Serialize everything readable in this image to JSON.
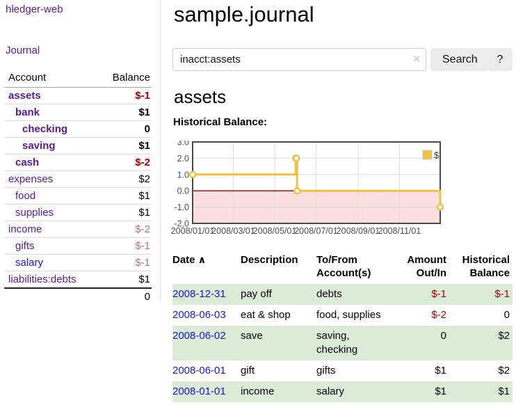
{
  "sidebar": {
    "brand": "hledger-web",
    "journal_label": "Journal",
    "accounts_table": {
      "headers": [
        "Account",
        "Balance"
      ],
      "rows": [
        {
          "name": "assets",
          "balance": "$-1",
          "indent": 1,
          "bold": true
        },
        {
          "name": "bank",
          "balance": "$1",
          "indent": 2,
          "bold": true
        },
        {
          "name": "checking",
          "balance": "0",
          "indent": 3,
          "bold": true
        },
        {
          "name": "saving",
          "balance": "$1",
          "indent": 3,
          "bold": true
        },
        {
          "name": "cash",
          "balance": "$-2",
          "indent": 2,
          "bold": true
        },
        {
          "name": "expenses",
          "balance": "$2",
          "indent": 1,
          "bold": false
        },
        {
          "name": "food",
          "balance": "$1",
          "indent": 2,
          "bold": false
        },
        {
          "name": "supplies",
          "balance": "$1",
          "indent": 2,
          "bold": false
        },
        {
          "name": "income",
          "balance": "$-2",
          "indent": 1,
          "bold": false
        },
        {
          "name": "gifts",
          "balance": "$-1",
          "indent": 2,
          "bold": false
        },
        {
          "name": "salary",
          "balance": "$-1",
          "indent": 2,
          "bold": false,
          "link_color": "blue"
        },
        {
          "name": "liabilities:debts",
          "balance": "$1",
          "indent": 1,
          "bold": false
        }
      ],
      "total": "0"
    }
  },
  "main": {
    "title": "sample.journal",
    "search": {
      "value": "inacct:assets",
      "clear_icon": "×",
      "button_label": "Search",
      "help_label": "?"
    },
    "account_heading": "assets",
    "balance_label": "Historical Balance:",
    "register_table": {
      "headers": {
        "date": "Date",
        "sort_icon": "∧",
        "description": "Description",
        "account": "To/From Account(s)",
        "amount": "Amount Out/In",
        "balance": "Historical Balance"
      },
      "rows": [
        {
          "date": "2008-12-31",
          "description": "pay off",
          "account": "debts",
          "amount": "$-1",
          "balance": "$-1"
        },
        {
          "date": "2008-06-03",
          "description": "eat & shop",
          "account": "food, supplies",
          "amount": "$-2",
          "balance": "0"
        },
        {
          "date": "2008-06-02",
          "description": "save",
          "account": "saving, checking",
          "amount": "0",
          "balance": "$2"
        },
        {
          "date": "2008-06-01",
          "description": "gift",
          "account": "gifts",
          "amount": "$1",
          "balance": "$2"
        },
        {
          "date": "2008-01-01",
          "description": "income",
          "account": "salary",
          "amount": "$1",
          "balance": "$1"
        }
      ]
    }
  },
  "chart_data": {
    "type": "line",
    "title": "Historical Balance",
    "series": [
      {
        "name": "$",
        "color": "#edc240",
        "step": true,
        "points": [
          [
            "2008-01-01",
            1
          ],
          [
            "2008-06-01",
            2
          ],
          [
            "2008-06-02",
            2
          ],
          [
            "2008-06-03",
            0
          ],
          [
            "2008-12-31",
            -1
          ]
        ]
      }
    ],
    "x_ticks": [
      "2008/01/01",
      "2008/03/01",
      "2008/05/01",
      "2008/07/01",
      "2008/09/01",
      "2008/11/01"
    ],
    "y_ticks": [
      3.0,
      2.0,
      1.0,
      0.0,
      -1.0,
      -2.0
    ],
    "xlim": [
      "2008-01-01",
      "2008-12-31"
    ],
    "ylim": [
      -2,
      3
    ],
    "grid": true,
    "legend": {
      "label": "$",
      "position": "top-right"
    },
    "negative_region_color": "#fcdfe0",
    "zero_line_color": "#8b0000",
    "border_color": "#4a4a4a",
    "gridline_color": "#dcdcdc"
  }
}
